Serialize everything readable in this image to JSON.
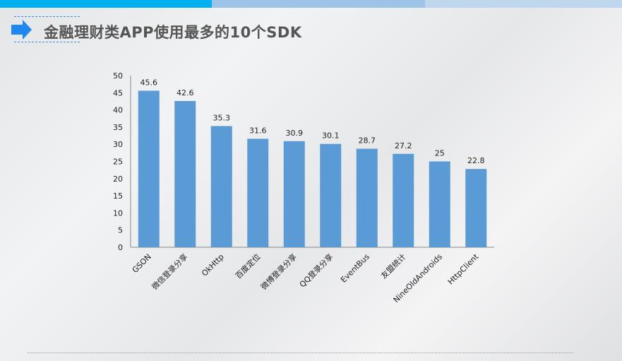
{
  "title": "金融理财类APP使用最多的10个SDK",
  "colors": {
    "bar": "#5b9bd5",
    "accent": "#00b0f0",
    "icon": "#1e88f0"
  },
  "chart_data": {
    "type": "bar",
    "title": "金融理财类APP使用最多的10个SDK",
    "categories": [
      "GSON",
      "微信登录分享",
      "OkHttp",
      "百度定位",
      "微博登录分享",
      "QQ登录分享",
      "EventBus",
      "友盟统计",
      "NineOldAndroids",
      "HttpClient"
    ],
    "values": [
      45.6,
      42.6,
      35.3,
      31.6,
      30.9,
      30.1,
      28.7,
      27.2,
      25,
      22.8
    ],
    "data_labels": [
      "45.6",
      "42.6",
      "35.3",
      "31.6",
      "30.9",
      "30.1",
      "28.7",
      "27.2",
      "25",
      "22.8"
    ],
    "yticks": [
      "0",
      "5",
      "10",
      "15",
      "20",
      "25",
      "30",
      "35",
      "40",
      "45",
      "50"
    ],
    "ylim": [
      0,
      50
    ],
    "xlabel": "",
    "ylabel": "",
    "grid": false,
    "legend": "none"
  }
}
